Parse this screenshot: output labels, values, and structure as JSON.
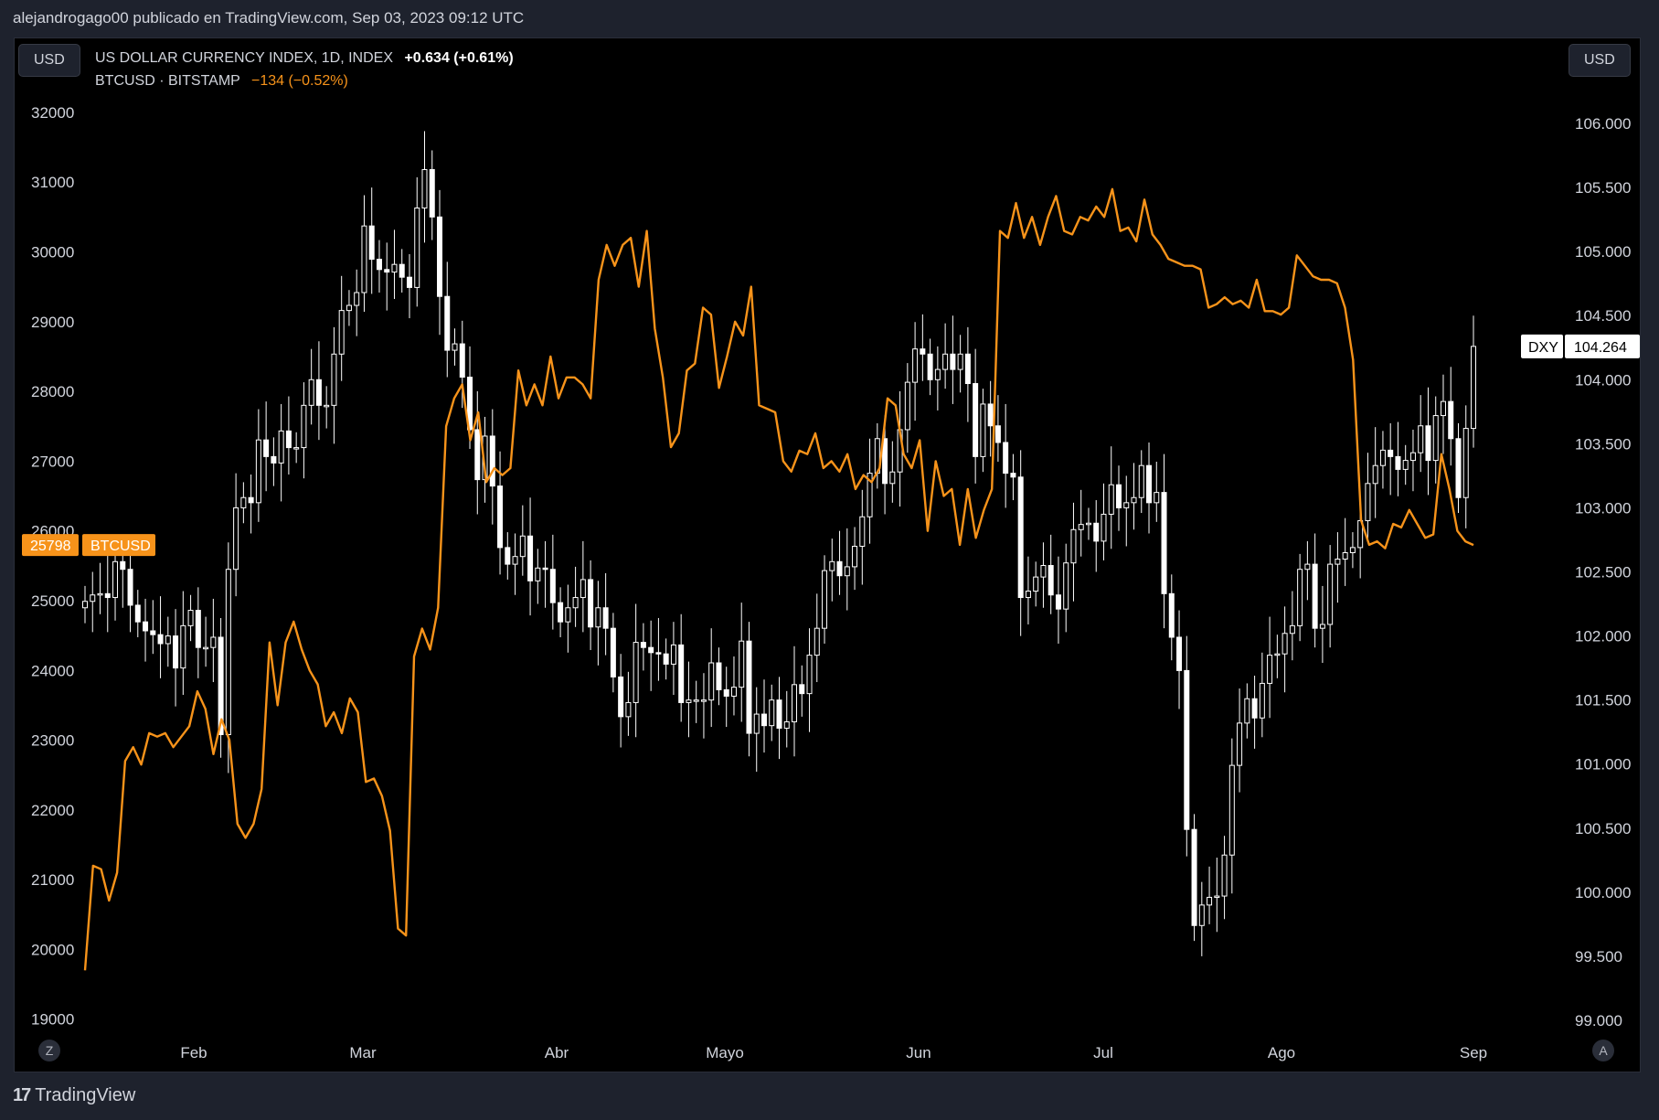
{
  "header": {
    "byline": "alejandrogago00 publicado en TradingView.com, Sep 03, 2023 09:12 UTC"
  },
  "currency": {
    "left": "USD",
    "right": "USD"
  },
  "legend": {
    "primary": {
      "name": "US DOLLAR CURRENCY INDEX, 1D, INDEX",
      "change": "+0.634 (+0.61%)"
    },
    "secondary": {
      "name": "BTCUSD · BITSTAMP",
      "change": "−134 (−0.52%)"
    }
  },
  "buttons": {
    "zoom": "Z",
    "auto": "A"
  },
  "footer": {
    "brand": "TradingView"
  },
  "colors": {
    "background": "#000000",
    "btc_line": "#f7931a",
    "candle": "#ffffff",
    "text": "#d1d4dc"
  },
  "icons": {
    "logo": "tradingview-logo-icon"
  },
  "chart_data": {
    "type": "line",
    "title": "US DOLLAR CURRENCY INDEX, 1D, INDEX",
    "x_tick_labels": [
      "Feb",
      "Mar",
      "Abr",
      "Mayo",
      "Jun",
      "Jul",
      "Ago",
      "Sep"
    ],
    "left_axis": {
      "ticks": [
        "19000",
        "20000",
        "21000",
        "22000",
        "23000",
        "24000",
        "25000",
        "26000",
        "27000",
        "28000",
        "29000",
        "30000",
        "31000",
        "32000"
      ],
      "ylim": [
        18800,
        32300
      ]
    },
    "right_axis": {
      "ticks": [
        "99.000",
        "99.500",
        "100.000",
        "100.500",
        "101.000",
        "101.500",
        "102.000",
        "102.500",
        "103.000",
        "103.500",
        "104.000",
        "104.500",
        "105.000",
        "105.500",
        "106.000"
      ],
      "ylim": [
        98.9,
        106.25
      ]
    },
    "last_labels": {
      "btc": {
        "value": "25798",
        "name": "BTCUSD"
      },
      "dxy": {
        "value": "104.264",
        "name": "DXY"
      }
    },
    "series": [
      {
        "name": "BTCUSD",
        "axis": "left",
        "color": "#f7931a",
        "values": [
          19700,
          21200,
          21150,
          20700,
          21100,
          22700,
          22900,
          22650,
          23100,
          23050,
          23100,
          22900,
          23050,
          23200,
          23700,
          23450,
          22800,
          23300,
          23000,
          21800,
          21600,
          21800,
          22300,
          24400,
          23500,
          24400,
          24700,
          24300,
          24000,
          23800,
          23200,
          23400,
          23100,
          23600,
          23400,
          22400,
          22450,
          22200,
          21700,
          20300,
          20200,
          24200,
          24600,
          24300,
          24900,
          27500,
          27900,
          28100,
          27300,
          27700,
          26700,
          26900,
          26800,
          26900,
          28300,
          27800,
          28100,
          27800,
          28500,
          27900,
          28200,
          28200,
          28100,
          27900,
          29600,
          30100,
          29800,
          30100,
          30200,
          29500,
          30300,
          28900,
          28200,
          27200,
          27400,
          28300,
          28400,
          29200,
          29100,
          28050,
          28500,
          29000,
          28800,
          29500,
          27800,
          27750,
          27700,
          27000,
          26850,
          27150,
          27100,
          27400,
          26900,
          27000,
          26850,
          27100,
          26600,
          26800,
          26700,
          26900,
          27900,
          27800,
          27100,
          26900,
          27300,
          26000,
          27000,
          26500,
          26600,
          25800,
          26600,
          25900,
          26300,
          26600,
          30300,
          30200,
          30700,
          30200,
          30500,
          30100,
          30500,
          30800,
          30300,
          30250,
          30500,
          30450,
          30650,
          30500,
          30900,
          30300,
          30350,
          30150,
          30750,
          30250,
          30100,
          29900,
          29850,
          29800,
          29800,
          29750,
          29200,
          29250,
          29350,
          29250,
          29300,
          29200,
          29600,
          29150,
          29150,
          29100,
          29200,
          29950,
          29800,
          29650,
          29600,
          29600,
          29550,
          29200,
          28450,
          26150,
          25800,
          25850,
          25750,
          26100,
          26050,
          26300,
          26100,
          25900,
          25950,
          27100,
          26600,
          26000,
          25850,
          25798
        ]
      },
      {
        "name": "DXY",
        "axis": "right",
        "type": "candlestick",
        "color": "#ffffff",
        "values": [
          102.27,
          102.32,
          102.33,
          102.3,
          102.58,
          102.52,
          102.24,
          102.11,
          102.04,
          102.01,
          101.94,
          102.0,
          101.75,
          102.08,
          102.2,
          101.91,
          101.91,
          101.99,
          101.23,
          102.52,
          103.0,
          103.08,
          103.04,
          103.53,
          103.4,
          103.35,
          103.6,
          103.47,
          103.47,
          103.8,
          104.0,
          103.8,
          103.8,
          104.2,
          104.54,
          104.58,
          104.68,
          105.2,
          104.94,
          104.86,
          104.84,
          104.9,
          104.8,
          104.72,
          105.34,
          105.64,
          105.27,
          104.65,
          104.23,
          104.28,
          104.02,
          103.61,
          103.22,
          103.56,
          103.17,
          102.69,
          102.56,
          102.62,
          102.78,
          102.43,
          102.53,
          102.52,
          102.26,
          102.11,
          102.22,
          102.3,
          102.44,
          102.07,
          102.22,
          102.06,
          101.68,
          101.37,
          101.48,
          101.95,
          101.91,
          101.87,
          101.86,
          101.78,
          101.93,
          101.48,
          101.5,
          101.5,
          101.5,
          101.79,
          101.58,
          101.53,
          101.6,
          101.96,
          101.24,
          101.39,
          101.3,
          101.5,
          101.28,
          101.33,
          101.62,
          101.55,
          101.85,
          102.06,
          102.51,
          102.58,
          102.47,
          102.54,
          102.7,
          102.93,
          103.27,
          103.54,
          103.19,
          103.28,
          103.61,
          103.98,
          104.24,
          104.2,
          104.0,
          104.08,
          104.2,
          104.08,
          104.2,
          103.97,
          103.4,
          103.81,
          103.64,
          103.51,
          103.27,
          103.24,
          102.3,
          102.35,
          102.46,
          102.55,
          102.32,
          102.21,
          102.57,
          102.83,
          102.87,
          102.88,
          102.74,
          102.95,
          103.18,
          103.0,
          103.04,
          103.08,
          103.33,
          103.04,
          103.12,
          102.33,
          101.99,
          101.73,
          100.49,
          99.74,
          99.9,
          99.96,
          99.97,
          100.29,
          100.99,
          101.32,
          101.51,
          101.36,
          101.63,
          101.85,
          101.86,
          102.02,
          102.08,
          102.52,
          102.56,
          102.06,
          102.09,
          102.56,
          102.6,
          102.65,
          102.69,
          102.9,
          103.19,
          103.33,
          103.45,
          103.4,
          103.3,
          103.37,
          103.43,
          103.64,
          103.37,
          103.72,
          103.83,
          103.54,
          103.08,
          103.62,
          104.26
        ]
      }
    ]
  }
}
